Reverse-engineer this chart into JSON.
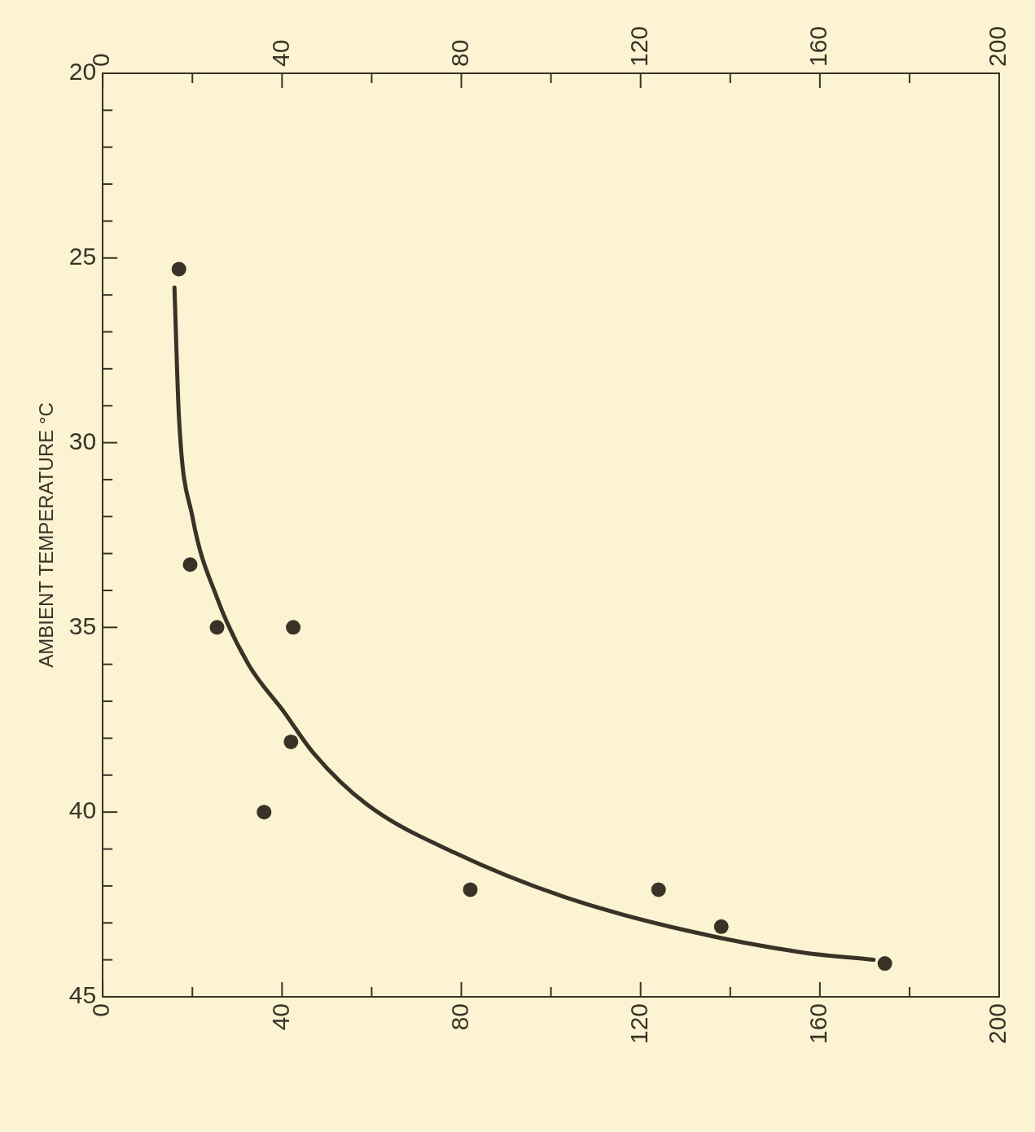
{
  "chart_data": {
    "type": "scatter",
    "ylabel": "AMBIENT TEMPERATURE °C",
    "xlim": [
      0,
      200
    ],
    "xticks": [
      0,
      {
        "value": 20,
        "label": null
      },
      40,
      {
        "value": 60,
        "label": null
      },
      80,
      {
        "value": 100,
        "label": null
      },
      120,
      {
        "value": 140,
        "label": null
      },
      160,
      {
        "value": 180,
        "label": null
      },
      200
    ],
    "x2lim": [
      0,
      200
    ],
    "x2ticks": [
      0,
      {
        "value": 20,
        "label": null
      },
      40,
      {
        "value": 60,
        "label": null
      },
      80,
      {
        "value": 100,
        "label": null
      },
      120,
      {
        "value": 140,
        "label": null
      },
      160,
      {
        "value": 180,
        "label": null
      },
      200
    ],
    "ylim": [
      45,
      20
    ],
    "yticks": [
      20,
      {
        "value": 21,
        "label": null
      },
      {
        "value": 22,
        "label": null
      },
      {
        "value": 23,
        "label": null
      },
      {
        "value": 24,
        "label": null
      },
      25,
      {
        "value": 26,
        "label": null
      },
      {
        "value": 27,
        "label": null
      },
      {
        "value": 28,
        "label": null
      },
      {
        "value": 29,
        "label": null
      },
      30,
      {
        "value": 31,
        "label": null
      },
      {
        "value": 32,
        "label": null
      },
      {
        "value": 33,
        "label": null
      },
      {
        "value": 34,
        "label": null
      },
      35,
      {
        "value": 36,
        "label": null
      },
      {
        "value": 37,
        "label": null
      },
      {
        "value": 38,
        "label": null
      },
      {
        "value": 39,
        "label": null
      },
      40,
      {
        "value": 41,
        "label": null
      },
      {
        "value": 42,
        "label": null
      },
      {
        "value": 43,
        "label": null
      },
      {
        "value": 44,
        "label": null
      },
      45
    ],
    "grid": false,
    "series": [
      {
        "marker": "circle",
        "color": "#3a3226",
        "x": [
          17,
          19.5,
          25.5,
          42.5,
          42,
          36,
          82,
          124,
          138,
          174.5
        ],
        "values": [
          25.3,
          33.3,
          35,
          35,
          38.1,
          40,
          42.1,
          42.1,
          43.1,
          44.1
        ]
      },
      {
        "type": "line",
        "marker": "none",
        "line_style": "solid",
        "color": "#3a3226",
        "x": [
          16,
          17,
          20,
          25.5,
          32.5,
          40.5,
          47,
          59,
          78.5,
          103,
          130,
          156,
          172
        ],
        "values": [
          25.8,
          29.3,
          32,
          34.2,
          36,
          37.3,
          38.4,
          39.8,
          41.1,
          42.3,
          43.2,
          43.8,
          44
        ]
      }
    ]
  }
}
